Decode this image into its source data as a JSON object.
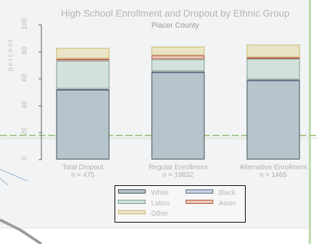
{
  "chart_data": {
    "type": "bar",
    "stacked": true,
    "title": "High School Enrollment and Dropout by Ethnic Group",
    "subtitle": "Placer County",
    "ylabel": "percent",
    "ylim": [
      0,
      100
    ],
    "yticks": [
      0,
      20,
      40,
      60,
      80,
      100
    ],
    "categories": [
      {
        "label": "Total Dropout",
        "n_label": "n = 475"
      },
      {
        "label": "Regular Enrollment",
        "n_label": "n = 19832"
      },
      {
        "label": "Alternative Enrollment",
        "n_label": "n = 1465"
      }
    ],
    "series": [
      {
        "name": "White",
        "values": [
          52,
          65,
          59
        ],
        "fill": "#b6c4cc",
        "stroke": "#3c4a52"
      },
      {
        "name": "Black",
        "values": [
          0.5,
          0.5,
          0.5
        ],
        "fill": "#c8d0e2",
        "stroke": "#5a6680"
      },
      {
        "name": "Latino",
        "values": [
          21,
          9,
          15.5
        ],
        "fill": "#d2e2da",
        "stroke": "#7b9a8c"
      },
      {
        "name": "Asian",
        "values": [
          1.5,
          3,
          1
        ],
        "fill": "#e8c7b4",
        "stroke": "#b5503a"
      },
      {
        "name": "Other",
        "values": [
          8,
          6.5,
          9.5
        ],
        "fill": "#ebe5c7",
        "stroke": "#c8b26a"
      }
    ],
    "grid": false,
    "legend_position": "bottom"
  }
}
